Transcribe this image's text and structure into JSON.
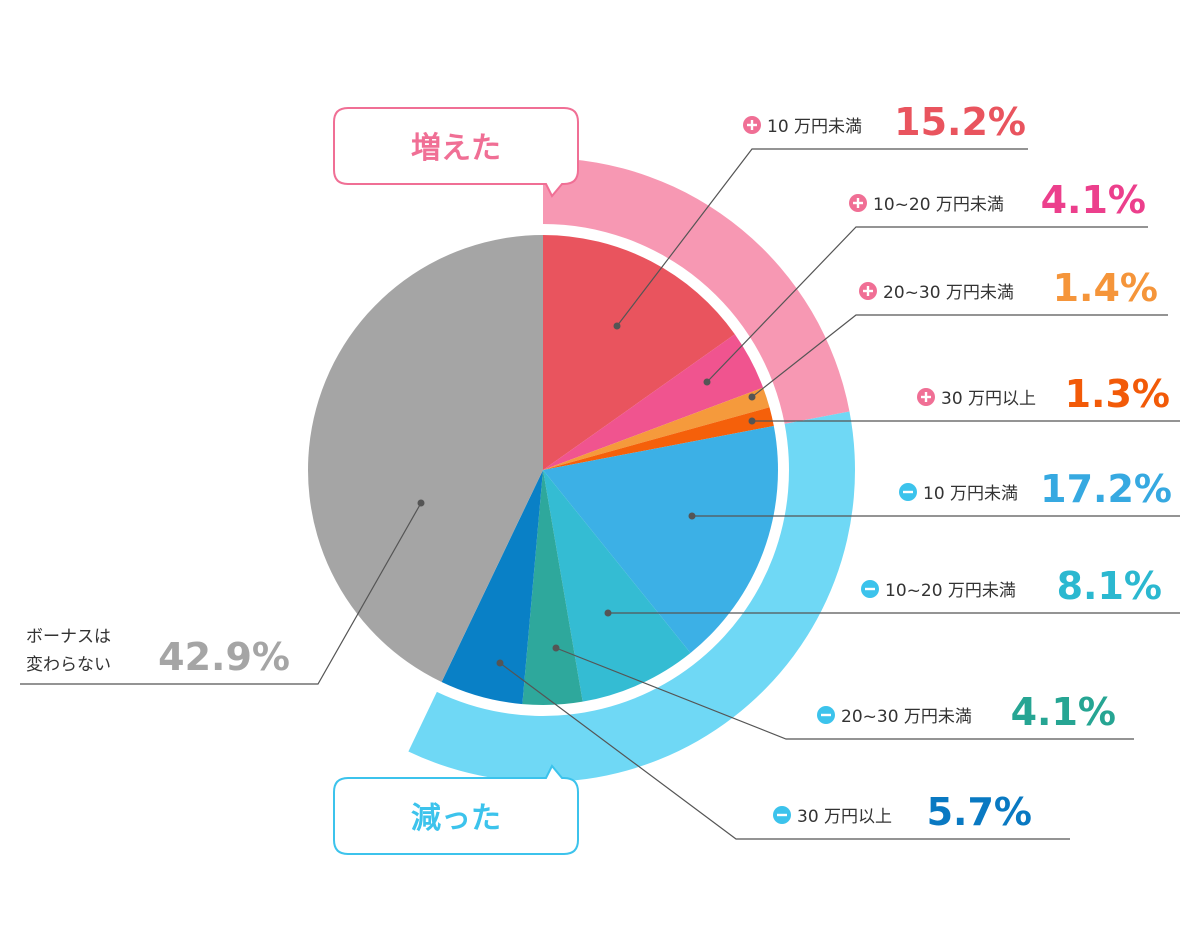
{
  "chart_data": {
    "type": "pie",
    "title": "",
    "groups": [
      {
        "label": "増えた",
        "color": "#f798b3",
        "text_color": "#f06f95"
      },
      {
        "label": "減った",
        "color": "#6fd8f5",
        "text_color": "#3cc3ec"
      }
    ],
    "slices": [
      {
        "sign": "+",
        "label": "10 万円未満",
        "value": 15.2,
        "value_text": "15.2%",
        "color": "#e9545e",
        "text_color": "#e9545e",
        "group": 0
      },
      {
        "sign": "+",
        "label": "10~20 万円未満",
        "value": 4.1,
        "value_text": "4.1%",
        "color": "#f0548f",
        "text_color": "#ec3f8c",
        "group": 0
      },
      {
        "sign": "+",
        "label": "20~30 万円未満",
        "value": 1.4,
        "value_text": "1.4%",
        "color": "#f59a3c",
        "text_color": "#f5953a",
        "group": 0
      },
      {
        "sign": "+",
        "label": "30 万円以上",
        "value": 1.3,
        "value_text": "1.3%",
        "color": "#f5600a",
        "text_color": "#f25a08",
        "group": 0
      },
      {
        "sign": "−",
        "label": "10 万円未満",
        "value": 17.2,
        "value_text": "17.2%",
        "color": "#3cb0e6",
        "text_color": "#36a9e1",
        "group": 1
      },
      {
        "sign": "−",
        "label": "10~20 万円未満",
        "value": 8.1,
        "value_text": "8.1%",
        "color": "#34bcd3",
        "text_color": "#2bb8d0",
        "group": 1
      },
      {
        "sign": "−",
        "label": "20~30 万円未満",
        "value": 4.1,
        "value_text": "4.1%",
        "color": "#2ea89c",
        "text_color": "#26a593",
        "group": 1
      },
      {
        "sign": "−",
        "label": "30 万円以上",
        "value": 5.7,
        "value_text": "5.7%",
        "color": "#0980c6",
        "text_color": "#0979c2",
        "group": 1
      },
      {
        "sign": "",
        "label": "ボーナスは|変わらない",
        "value": 42.9,
        "value_text": "42.9%",
        "color": "#a5a5a5",
        "text_color": "#a5a5a5",
        "group": -1
      }
    ]
  }
}
